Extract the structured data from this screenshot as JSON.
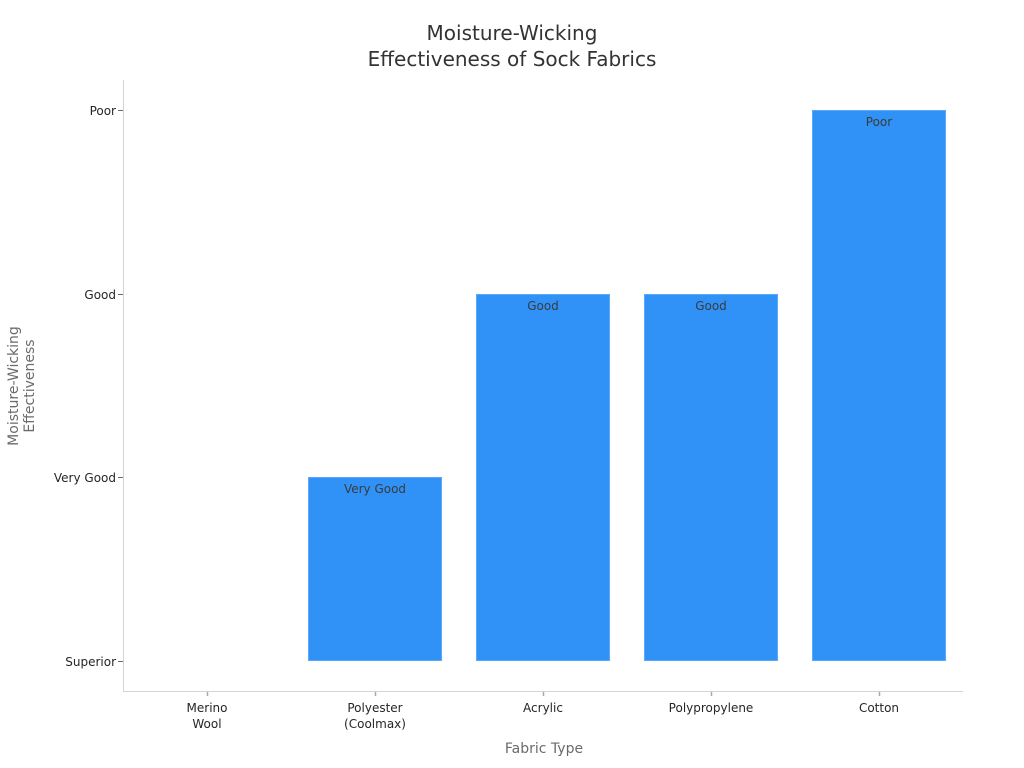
{
  "chart_data": {
    "type": "bar",
    "title": "Moisture-Wicking\nEffectiveness of Sock Fabrics",
    "title_lines": [
      "Moisture-Wicking",
      "Effectiveness of Sock Fabrics"
    ],
    "xlabel": "Fabric Type",
    "ylabel": "Moisture-Wicking\nEffectiveness",
    "ylabel_lines": [
      "Moisture-Wicking",
      "Effectiveness"
    ],
    "categories": [
      "Merino Wool",
      "Polyester (Coolmax)",
      "Acrylic",
      "Polypropylene",
      "Cotton"
    ],
    "category_label_lines": [
      [
        "Merino",
        "Wool"
      ],
      [
        "Polyester",
        "(Coolmax)"
      ],
      [
        "Acrylic"
      ],
      [
        "Polypropylene"
      ],
      [
        "Cotton"
      ]
    ],
    "y_tick_labels": [
      "Superior",
      "Very Good",
      "Good",
      "Poor"
    ],
    "y_tick_values": [
      0,
      1,
      2,
      3
    ],
    "values": [
      0,
      1,
      2,
      2,
      3
    ],
    "value_labels": [
      "",
      "Very Good",
      "Good",
      "Good",
      "Poor"
    ],
    "ylim": [
      -0.16,
      3.16
    ],
    "bar_color": "#3091f7",
    "grid": false,
    "legend": null
  }
}
